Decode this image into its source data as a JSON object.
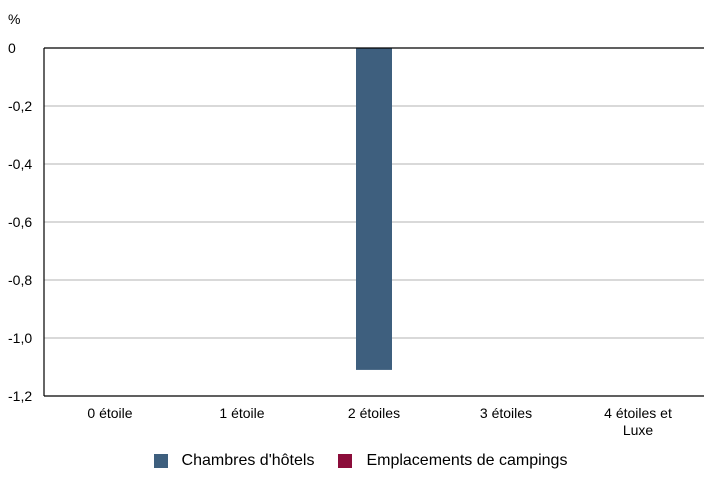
{
  "chart_data": {
    "type": "bar",
    "ylabel": "%",
    "categories": [
      "0 étoile",
      "1 étoile",
      "2 étoiles",
      "3 étoiles",
      "4 étoiles et Luxe"
    ],
    "category_lines": [
      [
        "0 étoile"
      ],
      [
        "1 étoile"
      ],
      [
        "2 étoiles"
      ],
      [
        "3 étoiles"
      ],
      [
        "4 étoiles et",
        "Luxe"
      ]
    ],
    "series": [
      {
        "name": "Chambres d'hôtels",
        "color": "#3e5f7e",
        "values": [
          0,
          0,
          -1.11,
          0,
          0
        ]
      },
      {
        "name": "Emplacements de campings",
        "color": "#8b0d3a",
        "values": [
          0,
          0,
          0,
          0,
          0
        ]
      }
    ],
    "ylim": [
      -1.2,
      0
    ],
    "yticks": [
      0,
      -0.2,
      -0.4,
      -0.6,
      -0.8,
      -1.0,
      -1.2
    ],
    "ytick_labels": [
      "0",
      "-0,2",
      "-0,4",
      "-0,6",
      "-0,8",
      "-1,0",
      "-1,2"
    ],
    "grid": true,
    "legend_position": "bottom"
  }
}
